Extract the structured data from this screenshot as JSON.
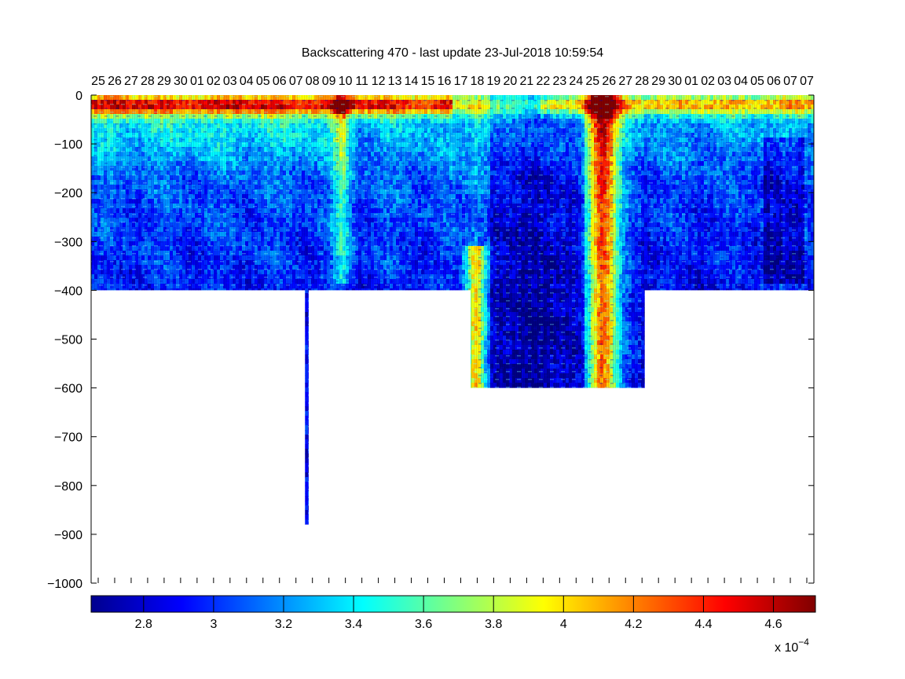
{
  "chart_data": {
    "type": "heatmap",
    "title": "Backscattering 470 - last update 23-Jul-2018 10:59:54",
    "xlabel": "",
    "ylabel": "",
    "x_tick_labels_visible": [
      "25",
      "26",
      "27",
      "28",
      "29",
      "30",
      "01",
      "02",
      "03",
      "04",
      "05",
      "06",
      "07",
      "08",
      "09",
      "10",
      "11",
      "12",
      "13",
      "14",
      "15",
      "16",
      "17",
      "18",
      "19",
      "20",
      "21",
      "22",
      "23",
      "24",
      "25",
      "26",
      "27",
      "28",
      "29",
      "30",
      "01",
      "02",
      "03",
      "04",
      "05",
      "06",
      "07",
      "07"
    ],
    "x_tick_labels_overlapping": true,
    "ylim": [
      -1000,
      0
    ],
    "y_ticks": [
      0,
      -100,
      -200,
      -300,
      -400,
      -500,
      -600,
      -700,
      -800,
      -900,
      -1000
    ],
    "y_tick_labels": [
      "0",
      "−100",
      "−200",
      "−300",
      "−400",
      "−500",
      "−600",
      "−700",
      "−800",
      "−900",
      "−1000"
    ],
    "colorbar": {
      "range": [
        2.65,
        4.72
      ],
      "ticks": [
        2.8,
        3,
        3.2,
        3.4,
        3.6,
        3.8,
        4,
        4.2,
        4.4,
        4.6
      ],
      "tick_labels": [
        "2.8",
        "3",
        "3.2",
        "3.4",
        "3.6",
        "3.8",
        "4",
        "4.2",
        "4.4",
        "4.6"
      ],
      "multiplier_label": "x 10",
      "multiplier_exponent": "−4",
      "colormap": "jet"
    },
    "profile_depth_segments": [
      {
        "x_fraction": [
          0.0,
          0.296
        ],
        "max_depth": -400
      },
      {
        "x_fraction": [
          0.296,
          0.301
        ],
        "max_depth": -880
      },
      {
        "x_fraction": [
          0.301,
          0.525
        ],
        "max_depth": -400
      },
      {
        "x_fraction": [
          0.525,
          0.766
        ],
        "max_depth": -600
      },
      {
        "x_fraction": [
          0.766,
          1.0
        ],
        "max_depth": -400
      }
    ],
    "high_value_features": [
      {
        "description": "surface layer",
        "depth_range": [
          0,
          -40
        ],
        "value_approx": 4.5
      },
      {
        "description": "deep band A",
        "x_fraction": [
          0.52,
          0.54
        ],
        "depth_range": [
          -300,
          -600
        ],
        "value_approx": 4.4
      },
      {
        "description": "deep band B",
        "x_fraction": [
          0.69,
          0.72
        ],
        "depth_range": [
          0,
          -600
        ],
        "value_approx": 4.6
      }
    ],
    "grid": false
  }
}
